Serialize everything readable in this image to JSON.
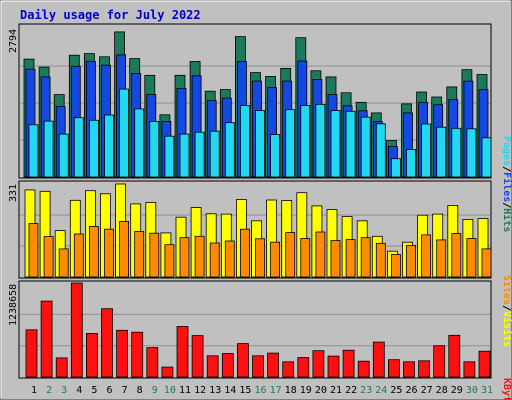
{
  "title": "Daily usage for July 2022",
  "colors": {
    "background": "#c0c0c0",
    "title": "#0000cc",
    "hits": "#1a7a5a",
    "files": "#1448e0",
    "pages": "#22d8f0",
    "visits": "#ffff00",
    "sites": "#ff8c00",
    "kbytes": "#ff1010",
    "weekday": "#000000",
    "weekend": "#1a7a5a",
    "gridline": "#909090"
  },
  "chart_data": [
    {
      "type": "bar",
      "title": "Daily usage for July 2022",
      "categories": [
        "1",
        "2",
        "3",
        "4",
        "5",
        "6",
        "7",
        "8",
        "9",
        "10",
        "11",
        "12",
        "13",
        "14",
        "15",
        "16",
        "17",
        "18",
        "19",
        "20",
        "21",
        "22",
        "23",
        "24",
        "25",
        "26",
        "27",
        "28",
        "29",
        "30",
        "31"
      ],
      "weekend_days": [
        "2",
        "3",
        "9",
        "10",
        "16",
        "17",
        "23",
        "24",
        "30",
        "31"
      ],
      "ymax_label": "2794",
      "ylim": [
        0,
        2794
      ],
      "series": [
        {
          "name": "Hits",
          "values": [
            2225,
            2075,
            1555,
            2300,
            2330,
            2270,
            2740,
            2235,
            1920,
            1175,
            1920,
            2180,
            1620,
            1650,
            2650,
            1970,
            1900,
            2050,
            2630,
            2005,
            1890,
            1590,
            1410,
            1210,
            690,
            1380,
            1605,
            1510,
            1700,
            2025,
            1935
          ]
        },
        {
          "name": "Files",
          "values": [
            2035,
            1890,
            1330,
            2090,
            2185,
            2110,
            2305,
            1955,
            1555,
            1050,
            1670,
            1910,
            1445,
            1490,
            2180,
            1810,
            1690,
            1810,
            2190,
            1840,
            1555,
            1345,
            1250,
            1050,
            575,
            1210,
            1405,
            1365,
            1460,
            1810,
            1650
          ]
        },
        {
          "name": "Pages",
          "values": [
            985,
            1055,
            810,
            1120,
            1070,
            1170,
            1660,
            1285,
            1050,
            770,
            810,
            845,
            865,
            1025,
            1350,
            1255,
            800,
            1270,
            1350,
            1370,
            1255,
            1240,
            1130,
            1005,
            345,
            520,
            1000,
            940,
            920,
            910,
            740
          ]
        }
      ]
    },
    {
      "type": "bar",
      "categories": [
        "1",
        "2",
        "3",
        "4",
        "5",
        "6",
        "7",
        "8",
        "9",
        "10",
        "11",
        "12",
        "13",
        "14",
        "15",
        "16",
        "17",
        "18",
        "19",
        "20",
        "21",
        "22",
        "23",
        "24",
        "25",
        "26",
        "27",
        "28",
        "29",
        "30",
        "31"
      ],
      "ymax_label": "331",
      "ylim": [
        0,
        331
      ],
      "series": [
        {
          "name": "Visits",
          "values": [
            310,
            305,
            165,
            273,
            307,
            296,
            331,
            260,
            265,
            157,
            213,
            247,
            225,
            224,
            276,
            200,
            274,
            272,
            300,
            253,
            240,
            215,
            200,
            145,
            92,
            124,
            220,
            224,
            255,
            205,
            208
          ]
        },
        {
          "name": "Sites",
          "values": [
            190,
            144,
            100,
            153,
            180,
            170,
            198,
            162,
            156,
            115,
            140,
            145,
            121,
            128,
            170,
            136,
            124,
            158,
            137,
            160,
            130,
            133,
            140,
            120,
            80,
            112,
            150,
            132,
            155,
            137,
            100
          ]
        }
      ]
    },
    {
      "type": "bar",
      "categories": [
        "1",
        "2",
        "3",
        "4",
        "5",
        "6",
        "7",
        "8",
        "9",
        "10",
        "11",
        "12",
        "13",
        "14",
        "15",
        "16",
        "17",
        "18",
        "19",
        "20",
        "21",
        "22",
        "23",
        "24",
        "25",
        "26",
        "27",
        "28",
        "29",
        "30",
        "31"
      ],
      "ymax_label": "1238658",
      "ylim": [
        0,
        1238658
      ],
      "series": [
        {
          "name": "KBytes",
          "values": [
            622000,
            1000000,
            252000,
            1238658,
            574000,
            900000,
            615000,
            590000,
            388000,
            130000,
            665000,
            546000,
            280000,
            310000,
            440000,
            280000,
            315000,
            200000,
            255000,
            347000,
            275000,
            353000,
            208000,
            460000,
            228000,
            200000,
            213000,
            413000,
            549000,
            200000,
            340000
          ]
        }
      ]
    }
  ],
  "legends": {
    "top": [
      "Pages",
      "/",
      "Files",
      "/",
      "Hits"
    ],
    "middle": [
      "Sites",
      "/",
      "Visits"
    ],
    "bottom": [
      "KBytes"
    ]
  }
}
